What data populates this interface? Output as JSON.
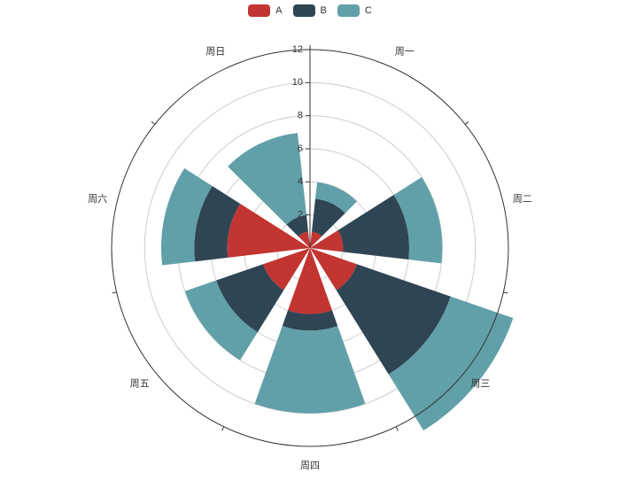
{
  "chart_data": {
    "type": "polar-stacked-bar",
    "categories": [
      "周一",
      "周二",
      "周三",
      "周四",
      "周五",
      "周六",
      "周日"
    ],
    "series": [
      {
        "name": "A",
        "color": "#c23531",
        "values": [
          1,
          2,
          3,
          4,
          3,
          5,
          1
        ]
      },
      {
        "name": "B",
        "color": "#2f4554",
        "values": [
          2,
          4,
          6,
          1,
          3,
          2,
          1
        ]
      },
      {
        "name": "C",
        "color": "#61a0a8",
        "values": [
          1,
          2,
          4,
          5,
          2,
          2,
          5
        ]
      }
    ],
    "radius_axis": {
      "min": 0,
      "max": 12,
      "ticks": [
        "2",
        "4",
        "6",
        "8",
        "10",
        "12"
      ]
    },
    "angle_axis": "categories",
    "stacked": true,
    "grid": true,
    "legend": "top-center"
  }
}
